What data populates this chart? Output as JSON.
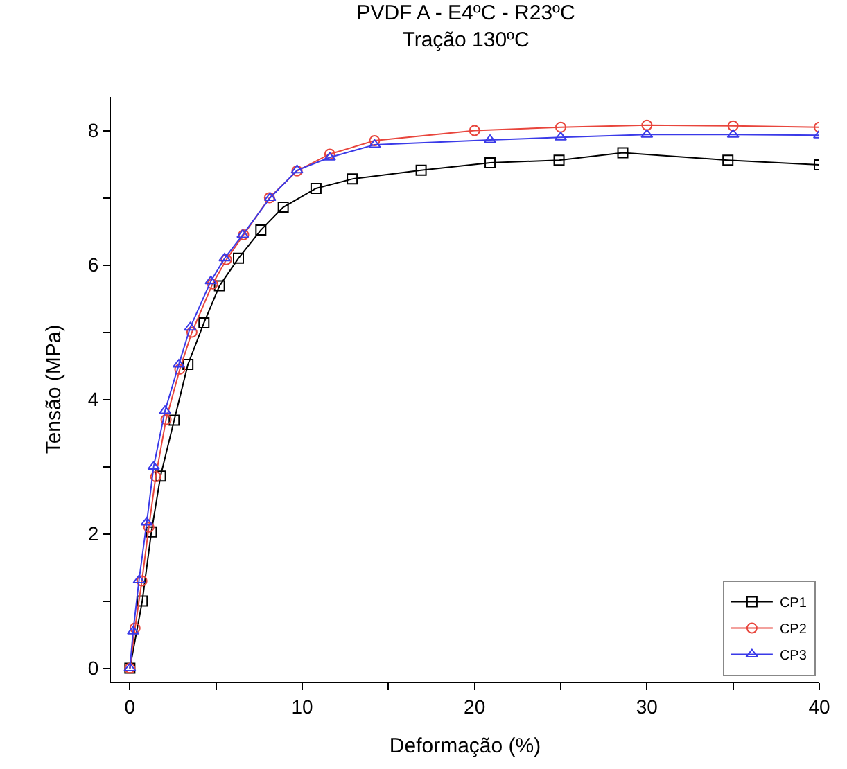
{
  "chart_data": {
    "type": "line",
    "title": "PVDF A - E4ºC - R23ºC\nTração 130ºC",
    "xlabel": "Deformação (%)",
    "ylabel": "Tensão (MPa)",
    "xlim": [
      -1.1,
      40
    ],
    "ylim": [
      -0.2,
      8.5
    ],
    "xticks": [
      0,
      {
        "value": 5,
        "label": null
      },
      10,
      {
        "value": 15,
        "label": null
      },
      20,
      {
        "value": 25,
        "label": null
      },
      30,
      {
        "value": 35,
        "label": null
      },
      40
    ],
    "yticks": [
      0,
      {
        "value": 1,
        "label": null
      },
      2,
      {
        "value": 3,
        "label": null
      },
      4,
      {
        "value": 5,
        "label": null
      },
      6,
      {
        "value": 7,
        "label": null
      },
      8
    ],
    "grid": false,
    "legend": "bottom right",
    "series": [
      {
        "name": "CP1",
        "color": "#000000",
        "marker": "square",
        "x": [
          0,
          0.72,
          1.25,
          1.78,
          2.57,
          3.37,
          4.3,
          5.2,
          6.3,
          7.6,
          8.9,
          10.8,
          12.9,
          16.9,
          20.9,
          24.9,
          28.6,
          34.7,
          40
        ],
        "values": [
          0,
          1.0,
          2.03,
          2.86,
          3.69,
          4.52,
          5.14,
          5.69,
          6.1,
          6.52,
          6.86,
          7.14,
          7.28,
          7.41,
          7.52,
          7.56,
          7.67,
          7.56,
          7.49
        ]
      },
      {
        "name": "CP2",
        "color": "#e8453c",
        "marker": "circle",
        "x": [
          0,
          0.3,
          0.7,
          1.1,
          1.5,
          2.1,
          2.9,
          3.6,
          4.8,
          5.6,
          6.6,
          8.1,
          9.7,
          11.6,
          14.2,
          20,
          25,
          30,
          35,
          40
        ],
        "values": [
          0,
          0.6,
          1.3,
          2.1,
          2.85,
          3.7,
          4.45,
          5.0,
          5.72,
          6.08,
          6.45,
          7.0,
          7.4,
          7.65,
          7.85,
          8.0,
          8.05,
          8.08,
          8.07,
          8.05
        ]
      },
      {
        "name": "CP3",
        "color": "#3a3ae8",
        "marker": "triangle",
        "x": [
          0,
          0.19,
          0.53,
          0.98,
          1.38,
          2.04,
          2.84,
          3.5,
          4.7,
          5.5,
          6.55,
          8.14,
          9.7,
          11.6,
          14.2,
          20.9,
          25,
          30,
          35,
          40
        ],
        "values": [
          0,
          0.55,
          1.31,
          2.17,
          3.0,
          3.83,
          4.52,
          5.07,
          5.76,
          6.1,
          6.45,
          7.0,
          7.41,
          7.6,
          7.79,
          7.86,
          7.9,
          7.94,
          7.94,
          7.93
        ]
      }
    ]
  }
}
